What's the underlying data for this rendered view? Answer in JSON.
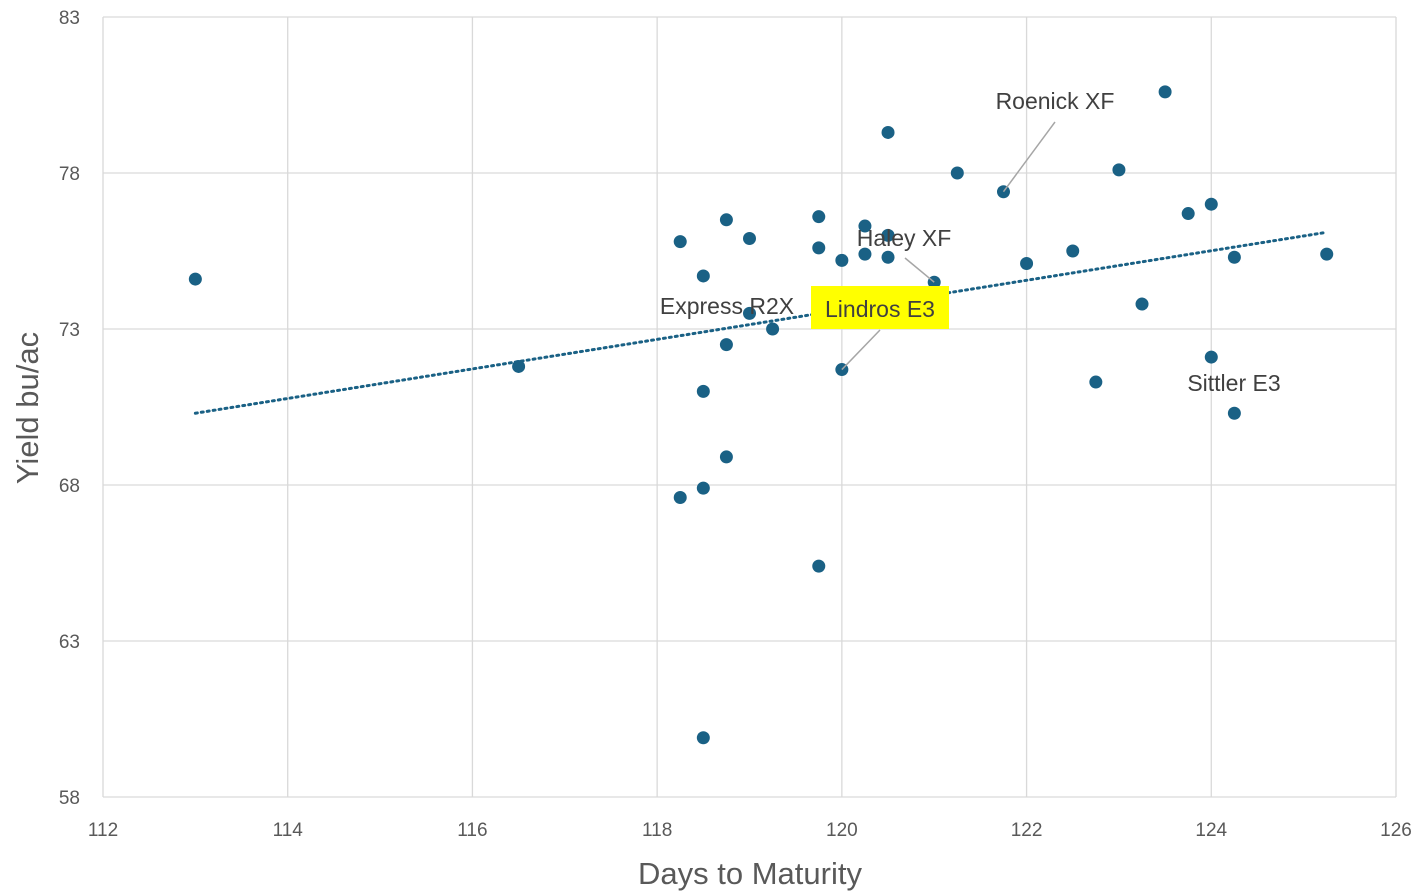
{
  "chart_data": {
    "type": "scatter",
    "title": "",
    "xlabel": "Days to Maturity",
    "ylabel": "Yield bu/ac",
    "xlim": [
      112,
      126
    ],
    "ylim": [
      58,
      83
    ],
    "xticks": [
      112,
      114,
      116,
      118,
      120,
      122,
      124,
      126
    ],
    "yticks": [
      58,
      63,
      68,
      73,
      78,
      83
    ],
    "grid": true,
    "legend": "none",
    "marker_color": "#1a6185",
    "trendline": {
      "type": "linear",
      "style": "dotted",
      "color": "#1a6185",
      "from": {
        "x": 113,
        "y": 70.3
      },
      "to": {
        "x": 125.25,
        "y": 76.1
      }
    },
    "points": [
      {
        "x": 113,
        "y": 74.6
      },
      {
        "x": 116.5,
        "y": 71.8
      },
      {
        "x": 118.25,
        "y": 75.8
      },
      {
        "x": 118.25,
        "y": 67.6
      },
      {
        "x": 118.5,
        "y": 74.7
      },
      {
        "x": 118.5,
        "y": 71.0
      },
      {
        "x": 118.5,
        "y": 67.9
      },
      {
        "x": 118.5,
        "y": 59.9
      },
      {
        "x": 118.75,
        "y": 76.5
      },
      {
        "x": 118.75,
        "y": 72.5
      },
      {
        "x": 118.75,
        "y": 68.9
      },
      {
        "x": 119,
        "y": 75.9
      },
      {
        "x": 119,
        "y": 73.5
      },
      {
        "x": 119.25,
        "y": 73.0
      },
      {
        "x": 119.75,
        "y": 76.6
      },
      {
        "x": 119.75,
        "y": 75.6
      },
      {
        "x": 119.75,
        "y": 65.4
      },
      {
        "x": 120,
        "y": 75.2
      },
      {
        "x": 120,
        "y": 71.7
      },
      {
        "x": 120.25,
        "y": 76.3
      },
      {
        "x": 120.25,
        "y": 75.4
      },
      {
        "x": 120.5,
        "y": 79.3
      },
      {
        "x": 120.5,
        "y": 76.0
      },
      {
        "x": 120.5,
        "y": 75.3
      },
      {
        "x": 121,
        "y": 74.5
      },
      {
        "x": 121.25,
        "y": 78.0
      },
      {
        "x": 121.75,
        "y": 77.4
      },
      {
        "x": 122,
        "y": 75.1
      },
      {
        "x": 122.5,
        "y": 75.5
      },
      {
        "x": 122.75,
        "y": 71.3
      },
      {
        "x": 123,
        "y": 78.1
      },
      {
        "x": 123.25,
        "y": 73.8
      },
      {
        "x": 123.5,
        "y": 80.6
      },
      {
        "x": 123.75,
        "y": 76.7
      },
      {
        "x": 124,
        "y": 77.0
      },
      {
        "x": 124,
        "y": 72.1
      },
      {
        "x": 124.25,
        "y": 75.3
      },
      {
        "x": 124.25,
        "y": 70.3
      },
      {
        "x": 125.25,
        "y": 75.4
      }
    ],
    "annotations": [
      {
        "label": "Roenick XF",
        "point": {
          "x": 121.75,
          "y": 77.4
        }
      },
      {
        "label": "Haley XF",
        "point": {
          "x": 121,
          "y": 74.5
        }
      },
      {
        "label": "Express R2X",
        "point": null
      },
      {
        "label": "Lindros E3",
        "point": {
          "x": 120,
          "y": 71.7
        },
        "highlight": "#ffff00"
      },
      {
        "label": "Sittler E3",
        "point": null
      }
    ]
  }
}
